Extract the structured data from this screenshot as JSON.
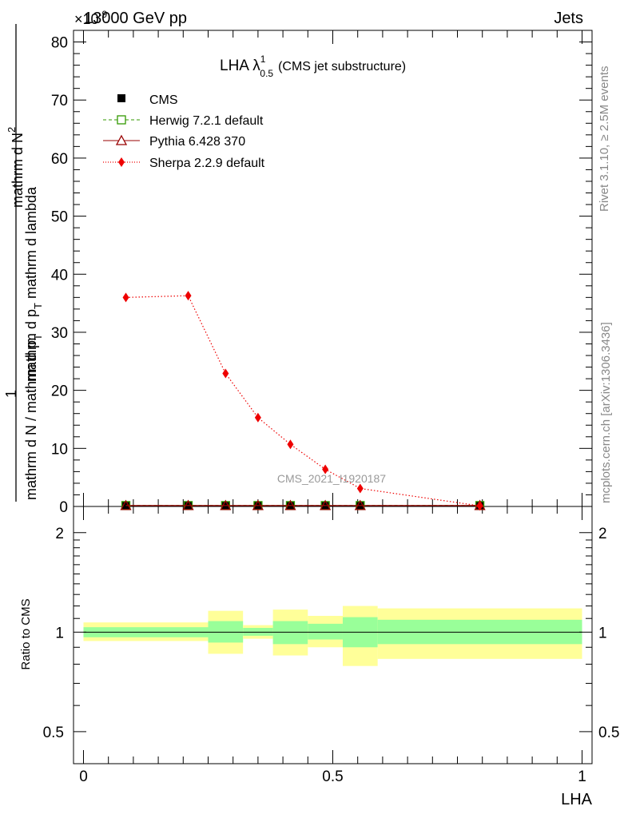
{
  "header": {
    "left": "13000 GeV pp",
    "right": "Jets",
    "exponent": "×10",
    "exponent_power": "-9"
  },
  "side_text": {
    "rivet": "Rivet 3.1.10, ≥ 2.5M events",
    "mcplots": "mcplots.cern.ch [arXiv:1306.3436]"
  },
  "watermark": "CMS_2021_I1920187",
  "plot_title": {
    "main": "LHA λ",
    "superscript": "1",
    "subscript": "0.5",
    "note": "(CMS jet substructure)"
  },
  "colors": {
    "cms": "#000000",
    "herwig": "#339900",
    "pythia": "#990000",
    "sherpa": "#ee0000",
    "band_inner": "#99ff99",
    "band_outer": "#ffff99"
  },
  "chart_data": {
    "type": "line",
    "x": [
      0.085,
      0.21,
      0.285,
      0.35,
      0.415,
      0.485,
      0.555,
      0.795
    ],
    "xlabel": "LHA",
    "xlim": [
      -0.02,
      1.02
    ],
    "x_ticks": [
      "0",
      "0.5",
      "1"
    ],
    "main_panel": {
      "ylabel_parts": [
        "1",
        "mathrm d N / mathrm d p",
        "T",
        "mathrm d N",
        "2",
        "mathrm d p",
        "T",
        " mathrm d lambda"
      ],
      "ylabel": "1 / (mathrm d N / mathrm d p_T) · mathrm d^2 N / (mathrm d p_T mathrm d lambda)",
      "ylim": [
        0,
        82
      ],
      "y_ticks": [
        "0",
        "10",
        "20",
        "30",
        "40",
        "50",
        "60",
        "70",
        "80"
      ],
      "series": [
        {
          "name": "CMS",
          "marker": "filled-square",
          "values": [
            0.15,
            0.15,
            0.15,
            0.15,
            0.15,
            0.15,
            0.15,
            0.15
          ]
        },
        {
          "name": "Herwig 7.2.1 default",
          "marker": "open-square",
          "line": "dashed",
          "values": [
            0.15,
            0.15,
            0.15,
            0.15,
            0.15,
            0.15,
            0.15,
            0.15
          ]
        },
        {
          "name": "Pythia 6.428 370",
          "marker": "open-triangle",
          "line": "solid",
          "values": [
            0.15,
            0.15,
            0.15,
            0.15,
            0.15,
            0.15,
            0.15,
            0.15
          ]
        },
        {
          "name": "Sherpa 2.2.9 default",
          "marker": "filled-diamond",
          "line": "dotted",
          "values": [
            36.0,
            36.3,
            22.9,
            15.3,
            10.7,
            6.4,
            3.1,
            0.1
          ]
        }
      ]
    },
    "ratio_panel": {
      "ylabel": "Ratio to CMS",
      "scale": "log",
      "ylim": [
        0.4,
        2.4
      ],
      "y_ticks": [
        "0.5",
        "1",
        "2"
      ],
      "reference": 1,
      "bins": [
        {
          "lo": 0.0,
          "hi": 0.25,
          "inner": [
            0.965,
            1.035
          ],
          "outer": [
            0.94,
            1.07
          ]
        },
        {
          "lo": 0.25,
          "hi": 0.32,
          "inner": [
            0.93,
            1.08
          ],
          "outer": [
            0.86,
            1.16
          ]
        },
        {
          "lo": 0.32,
          "hi": 0.38,
          "inner": [
            0.975,
            1.03
          ],
          "outer": [
            0.955,
            1.05
          ]
        },
        {
          "lo": 0.38,
          "hi": 0.45,
          "inner": [
            0.92,
            1.08
          ],
          "outer": [
            0.85,
            1.17
          ]
        },
        {
          "lo": 0.45,
          "hi": 0.52,
          "inner": [
            0.95,
            1.06
          ],
          "outer": [
            0.9,
            1.12
          ]
        },
        {
          "lo": 0.52,
          "hi": 0.59,
          "inner": [
            0.9,
            1.11
          ],
          "outer": [
            0.79,
            1.2
          ]
        },
        {
          "lo": 0.59,
          "hi": 1.0,
          "inner": [
            0.92,
            1.09
          ],
          "outer": [
            0.83,
            1.18
          ]
        }
      ]
    }
  }
}
